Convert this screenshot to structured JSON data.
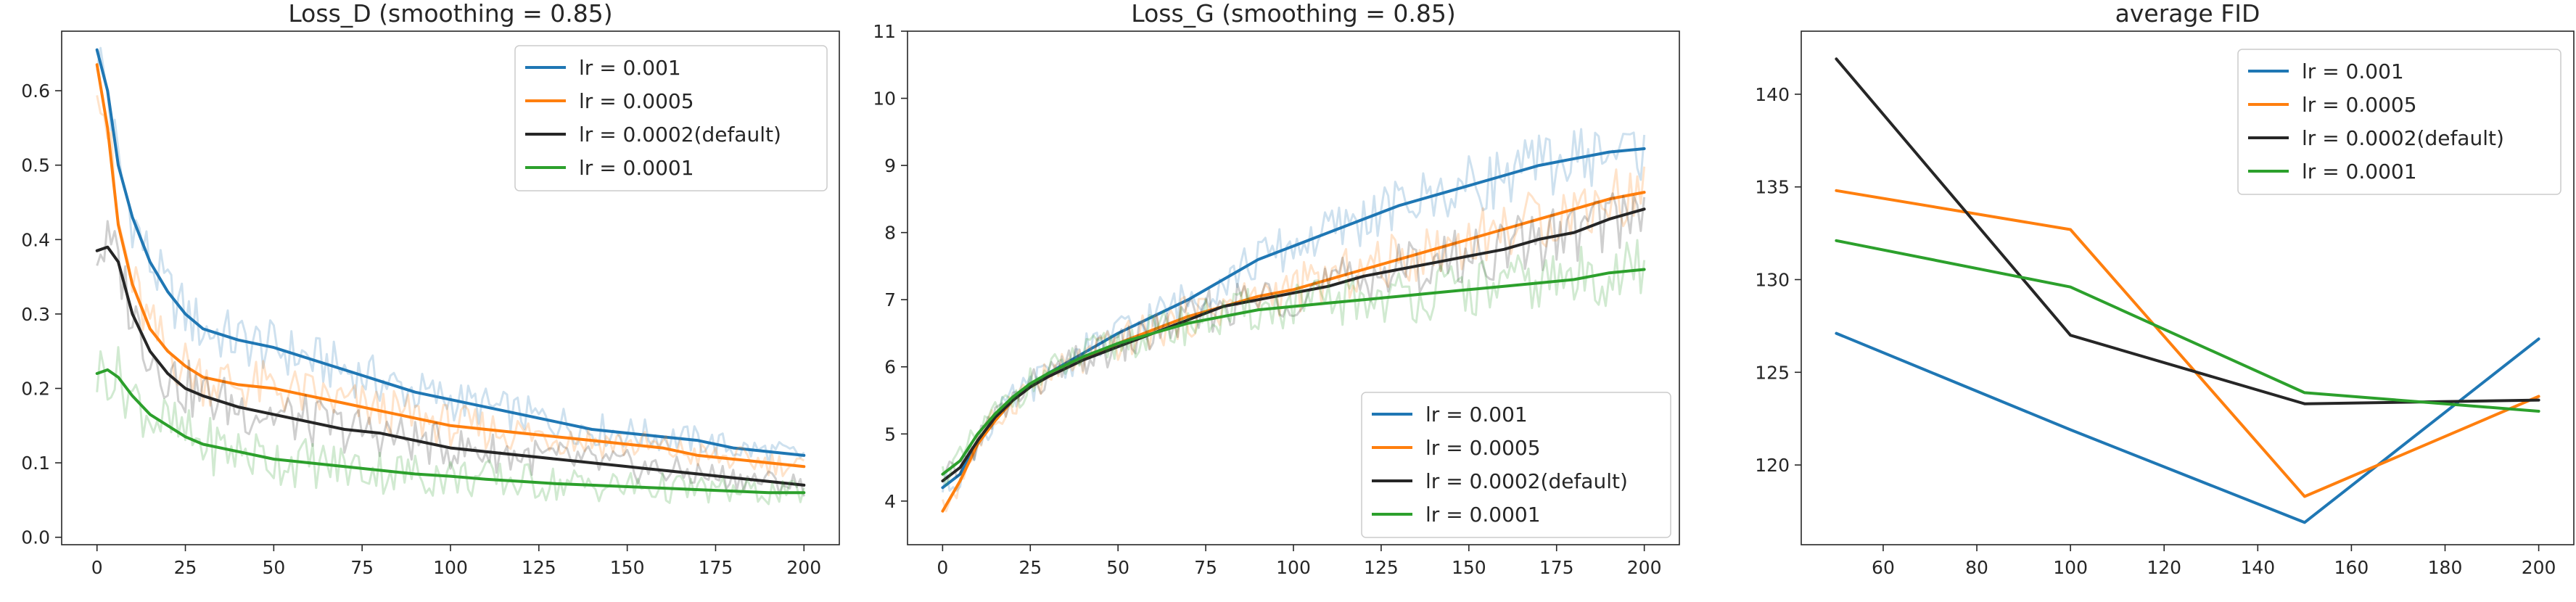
{
  "figure_title": "",
  "chart_data": [
    {
      "type": "line",
      "title": "Loss_D (smoothing = 0.85)",
      "xlabel": "",
      "ylabel": "",
      "xlim": [
        -10,
        210
      ],
      "ylim": [
        -0.01,
        0.68
      ],
      "xticks": [
        0,
        25,
        50,
        75,
        100,
        125,
        150,
        175,
        200
      ],
      "yticks": [
        0.0,
        0.1,
        0.2,
        0.3,
        0.4,
        0.5,
        0.6
      ],
      "legend_position": "top-right",
      "raw_series_faded": true,
      "series": [
        {
          "name": "lr = 0.001",
          "color": "#1f77b4",
          "x": [
            0,
            3,
            6,
            10,
            15,
            20,
            25,
            30,
            40,
            50,
            60,
            70,
            80,
            90,
            100,
            110,
            120,
            130,
            140,
            150,
            160,
            170,
            180,
            190,
            200
          ],
          "y": [
            0.655,
            0.6,
            0.5,
            0.43,
            0.37,
            0.33,
            0.3,
            0.28,
            0.265,
            0.255,
            0.24,
            0.225,
            0.21,
            0.195,
            0.185,
            0.175,
            0.165,
            0.155,
            0.145,
            0.14,
            0.135,
            0.13,
            0.12,
            0.115,
            0.11
          ]
        },
        {
          "name": "lr = 0.0005",
          "color": "#ff7f0e",
          "x": [
            0,
            3,
            6,
            10,
            15,
            20,
            25,
            30,
            40,
            50,
            60,
            70,
            80,
            90,
            100,
            110,
            120,
            130,
            140,
            150,
            160,
            170,
            180,
            190,
            200
          ],
          "y": [
            0.635,
            0.55,
            0.42,
            0.34,
            0.28,
            0.25,
            0.23,
            0.215,
            0.205,
            0.2,
            0.19,
            0.18,
            0.17,
            0.16,
            0.15,
            0.145,
            0.14,
            0.135,
            0.13,
            0.125,
            0.12,
            0.11,
            0.105,
            0.1,
            0.095
          ]
        },
        {
          "name": "lr = 0.0002(default)",
          "color": "#262626",
          "x": [
            0,
            3,
            6,
            10,
            15,
            20,
            25,
            30,
            40,
            50,
            60,
            70,
            80,
            90,
            100,
            110,
            120,
            130,
            140,
            150,
            160,
            170,
            180,
            190,
            200
          ],
          "y": [
            0.385,
            0.39,
            0.37,
            0.3,
            0.25,
            0.22,
            0.2,
            0.19,
            0.175,
            0.165,
            0.155,
            0.145,
            0.14,
            0.13,
            0.12,
            0.115,
            0.11,
            0.105,
            0.1,
            0.095,
            0.09,
            0.085,
            0.08,
            0.075,
            0.07
          ]
        },
        {
          "name": "lr = 0.0001",
          "color": "#2ca02c",
          "x": [
            0,
            3,
            6,
            10,
            15,
            20,
            25,
            30,
            40,
            50,
            60,
            70,
            80,
            90,
            100,
            110,
            120,
            130,
            140,
            150,
            160,
            170,
            180,
            190,
            200
          ],
          "y": [
            0.22,
            0.225,
            0.215,
            0.19,
            0.165,
            0.15,
            0.135,
            0.125,
            0.115,
            0.105,
            0.1,
            0.095,
            0.09,
            0.085,
            0.082,
            0.078,
            0.075,
            0.072,
            0.07,
            0.068,
            0.066,
            0.064,
            0.062,
            0.06,
            0.06
          ]
        }
      ]
    },
    {
      "type": "line",
      "title": "Loss_G (smoothing = 0.85)",
      "xlabel": "",
      "ylabel": "",
      "xlim": [
        -10,
        210
      ],
      "ylim": [
        3.35,
        11.0
      ],
      "xticks": [
        0,
        25,
        50,
        75,
        100,
        125,
        150,
        175,
        200
      ],
      "yticks": [
        4,
        5,
        6,
        7,
        8,
        9,
        10,
        11
      ],
      "legend_position": "bottom-right",
      "raw_series_faded": true,
      "series": [
        {
          "name": "lr = 0.001",
          "color": "#1f77b4",
          "x": [
            0,
            5,
            10,
            15,
            20,
            25,
            30,
            40,
            50,
            60,
            70,
            80,
            90,
            100,
            110,
            120,
            130,
            140,
            150,
            160,
            170,
            180,
            190,
            200
          ],
          "y": [
            4.2,
            4.4,
            4.9,
            5.2,
            5.5,
            5.7,
            5.9,
            6.2,
            6.5,
            6.75,
            7.0,
            7.3,
            7.6,
            7.8,
            8.0,
            8.2,
            8.4,
            8.55,
            8.7,
            8.85,
            9.0,
            9.1,
            9.2,
            9.25
          ]
        },
        {
          "name": "lr = 0.0005",
          "color": "#ff7f0e",
          "x": [
            0,
            5,
            10,
            15,
            20,
            25,
            30,
            40,
            50,
            60,
            70,
            80,
            90,
            100,
            110,
            120,
            130,
            140,
            150,
            160,
            170,
            180,
            190,
            200
          ],
          "y": [
            3.85,
            4.3,
            4.85,
            5.2,
            5.5,
            5.7,
            5.85,
            6.1,
            6.35,
            6.55,
            6.75,
            6.9,
            7.05,
            7.15,
            7.3,
            7.45,
            7.6,
            7.75,
            7.9,
            8.05,
            8.2,
            8.35,
            8.5,
            8.6
          ]
        },
        {
          "name": "lr = 0.0002(default)",
          "color": "#262626",
          "x": [
            0,
            5,
            10,
            15,
            20,
            25,
            30,
            40,
            50,
            60,
            70,
            80,
            90,
            100,
            110,
            120,
            130,
            140,
            150,
            160,
            170,
            180,
            190,
            200
          ],
          "y": [
            4.3,
            4.5,
            4.9,
            5.25,
            5.5,
            5.7,
            5.85,
            6.1,
            6.3,
            6.5,
            6.7,
            6.9,
            7.0,
            7.1,
            7.2,
            7.35,
            7.45,
            7.55,
            7.65,
            7.75,
            7.9,
            8.0,
            8.2,
            8.35
          ]
        },
        {
          "name": "lr = 0.0001",
          "color": "#2ca02c",
          "x": [
            0,
            5,
            10,
            15,
            20,
            25,
            30,
            40,
            50,
            60,
            70,
            80,
            90,
            100,
            110,
            120,
            130,
            140,
            150,
            160,
            170,
            180,
            190,
            200
          ],
          "y": [
            4.4,
            4.6,
            5.0,
            5.3,
            5.55,
            5.75,
            5.9,
            6.15,
            6.35,
            6.5,
            6.65,
            6.75,
            6.85,
            6.9,
            6.95,
            7.0,
            7.05,
            7.1,
            7.15,
            7.2,
            7.25,
            7.3,
            7.4,
            7.45
          ]
        }
      ]
    },
    {
      "type": "line",
      "title": "average FID",
      "xlabel": "",
      "ylabel": "",
      "xlim": [
        42.5,
        207.5
      ],
      "ylim": [
        115.7,
        143.4
      ],
      "xticks": [
        60,
        80,
        100,
        120,
        140,
        160,
        180,
        200
      ],
      "yticks": [
        120,
        125,
        130,
        135,
        140
      ],
      "legend_position": "top-right",
      "raw_series_faded": false,
      "series": [
        {
          "name": "lr = 0.001",
          "color": "#1f77b4",
          "x": [
            50,
            100,
            150,
            200
          ],
          "y": [
            127.1,
            121.9,
            116.9,
            126.8
          ]
        },
        {
          "name": "lr = 0.0005",
          "color": "#ff7f0e",
          "x": [
            50,
            100,
            150,
            200
          ],
          "y": [
            134.8,
            132.7,
            118.3,
            123.7
          ]
        },
        {
          "name": "lr = 0.0002(default)",
          "color": "#262626",
          "x": [
            50,
            100,
            150,
            200
          ],
          "y": [
            141.9,
            127.0,
            123.3,
            123.5
          ]
        },
        {
          "name": "lr = 0.0001",
          "color": "#2ca02c",
          "x": [
            50,
            100,
            150,
            200
          ],
          "y": [
            132.1,
            129.6,
            123.9,
            122.9
          ]
        }
      ]
    }
  ]
}
